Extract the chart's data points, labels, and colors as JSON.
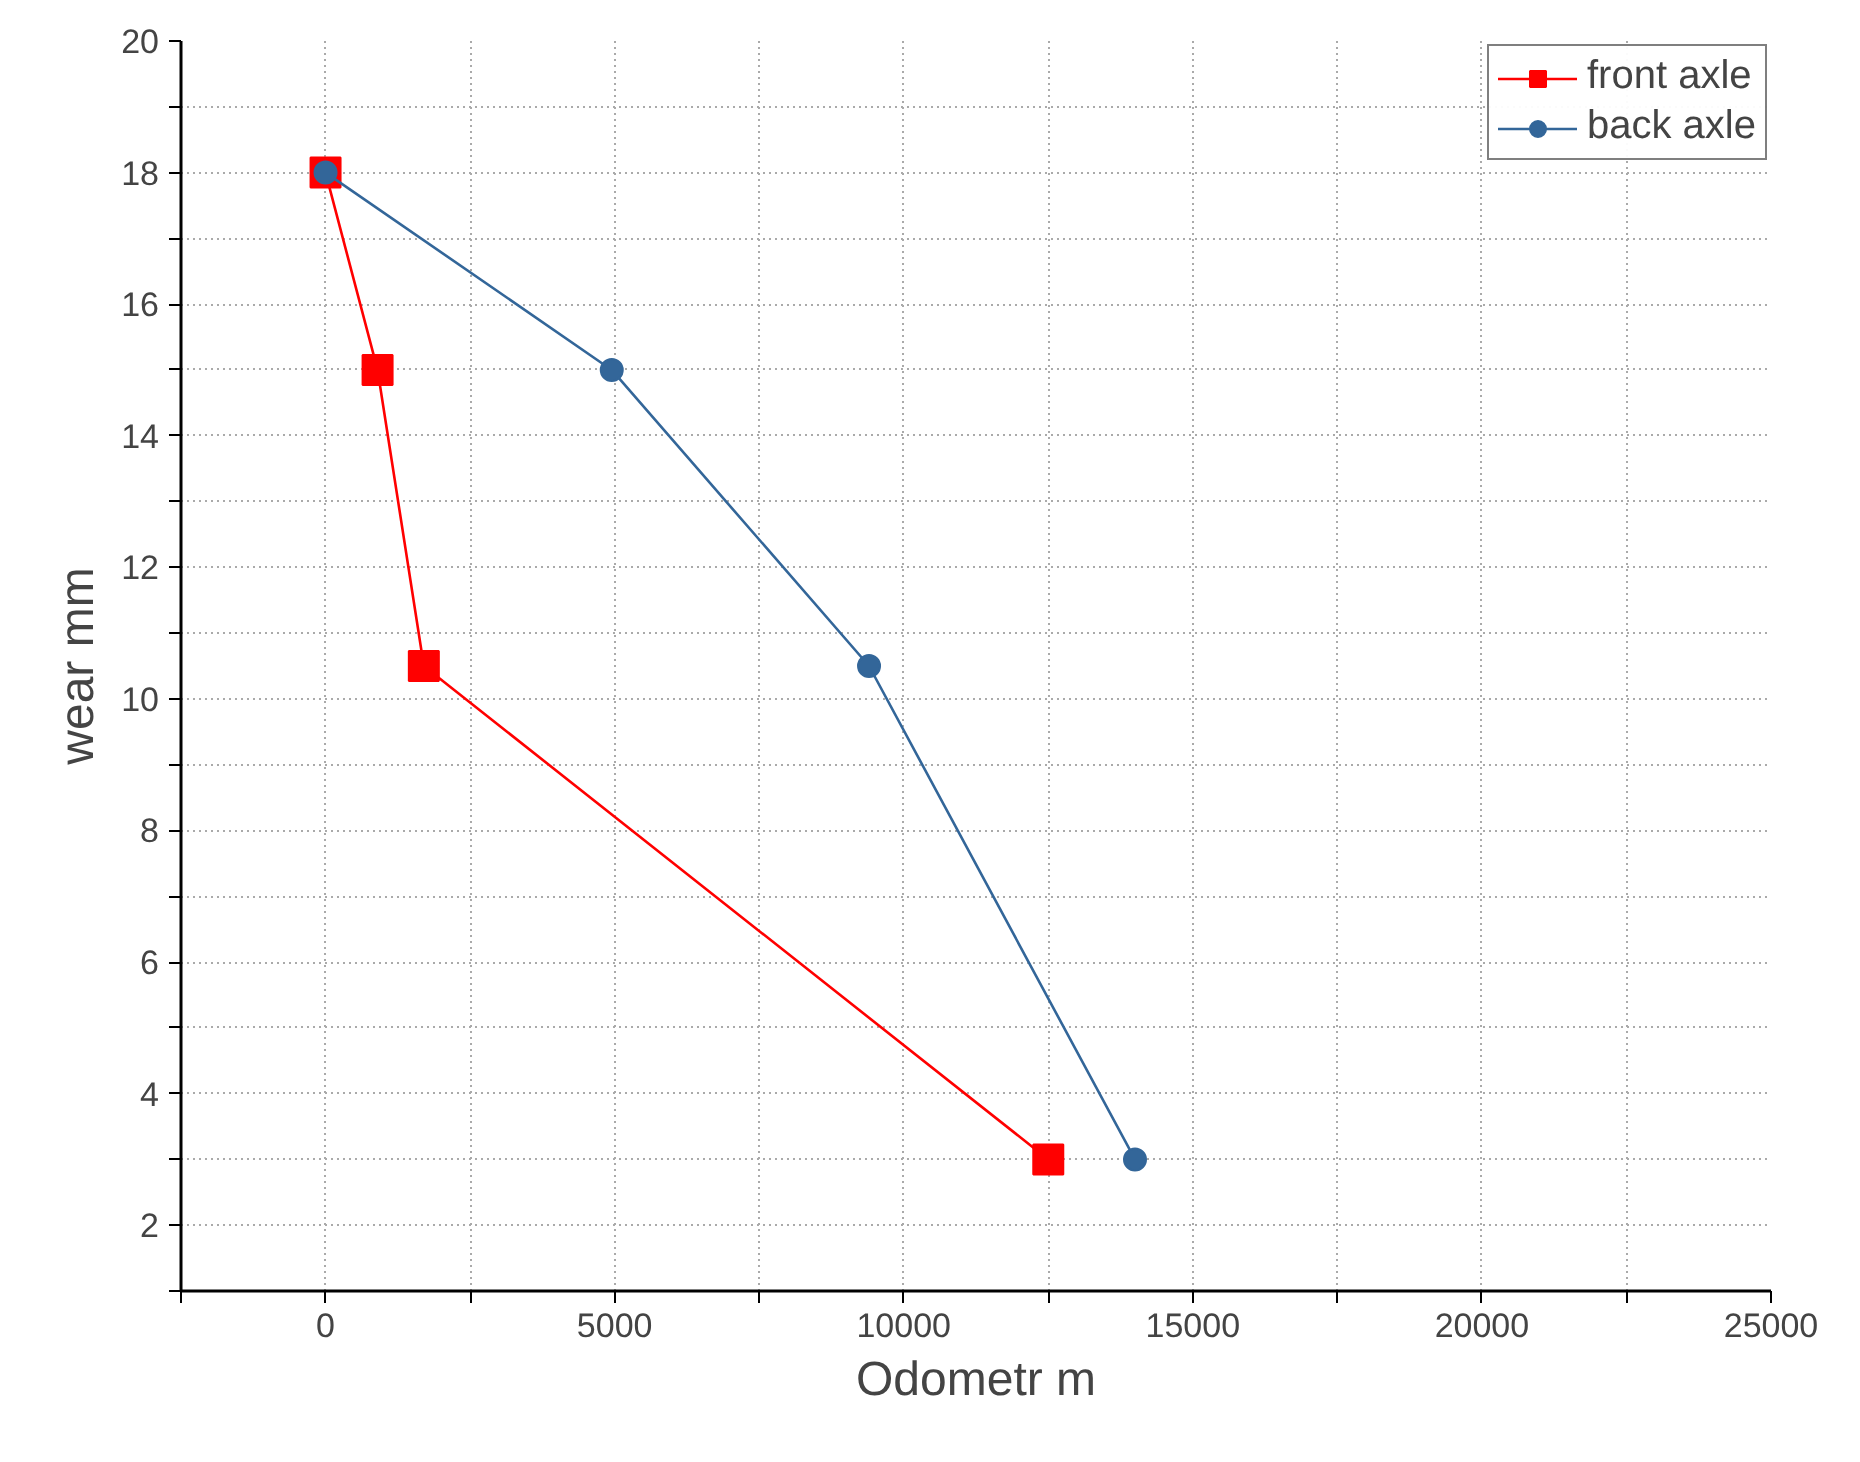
{
  "chart_data": {
    "type": "line",
    "xlabel": "Odometr m",
    "ylabel": "wear mm",
    "xlim": [
      -2500,
      25000
    ],
    "ylim": [
      1,
      20
    ],
    "xticks": [
      {
        "value": -2500,
        "label": null
      },
      0,
      {
        "value": 2500,
        "label": null
      },
      5000,
      {
        "value": 7500,
        "label": null
      },
      10000,
      {
        "value": 12500,
        "label": null
      },
      15000,
      {
        "value": 17500,
        "label": null
      },
      20000,
      {
        "value": 22500,
        "label": null
      },
      25000
    ],
    "yticks": [
      {
        "value": 1,
        "label": null
      },
      2,
      {
        "value": 3,
        "label": null
      },
      4,
      {
        "value": 5,
        "label": null
      },
      6,
      {
        "value": 7,
        "label": null
      },
      8,
      {
        "value": 9,
        "label": null
      },
      10,
      {
        "value": 11,
        "label": null
      },
      12,
      {
        "value": 13,
        "label": null
      },
      14,
      {
        "value": 15,
        "label": null
      },
      16,
      {
        "value": 17,
        "label": null
      },
      18,
      {
        "value": 19,
        "label": null
      },
      20
    ],
    "grid": true,
    "legend": "top right",
    "line_style": "solid",
    "series": [
      {
        "name": "front axle",
        "color": "#ff0000",
        "marker": "square",
        "x": [
          0,
          900,
          1700,
          12500
        ],
        "values": [
          18,
          15,
          10.5,
          3
        ]
      },
      {
        "name": "back axle",
        "color": "#336699",
        "marker": "circle",
        "x": [
          0,
          4950,
          9400,
          14000
        ],
        "values": [
          18,
          15,
          10.5,
          3
        ]
      }
    ]
  }
}
